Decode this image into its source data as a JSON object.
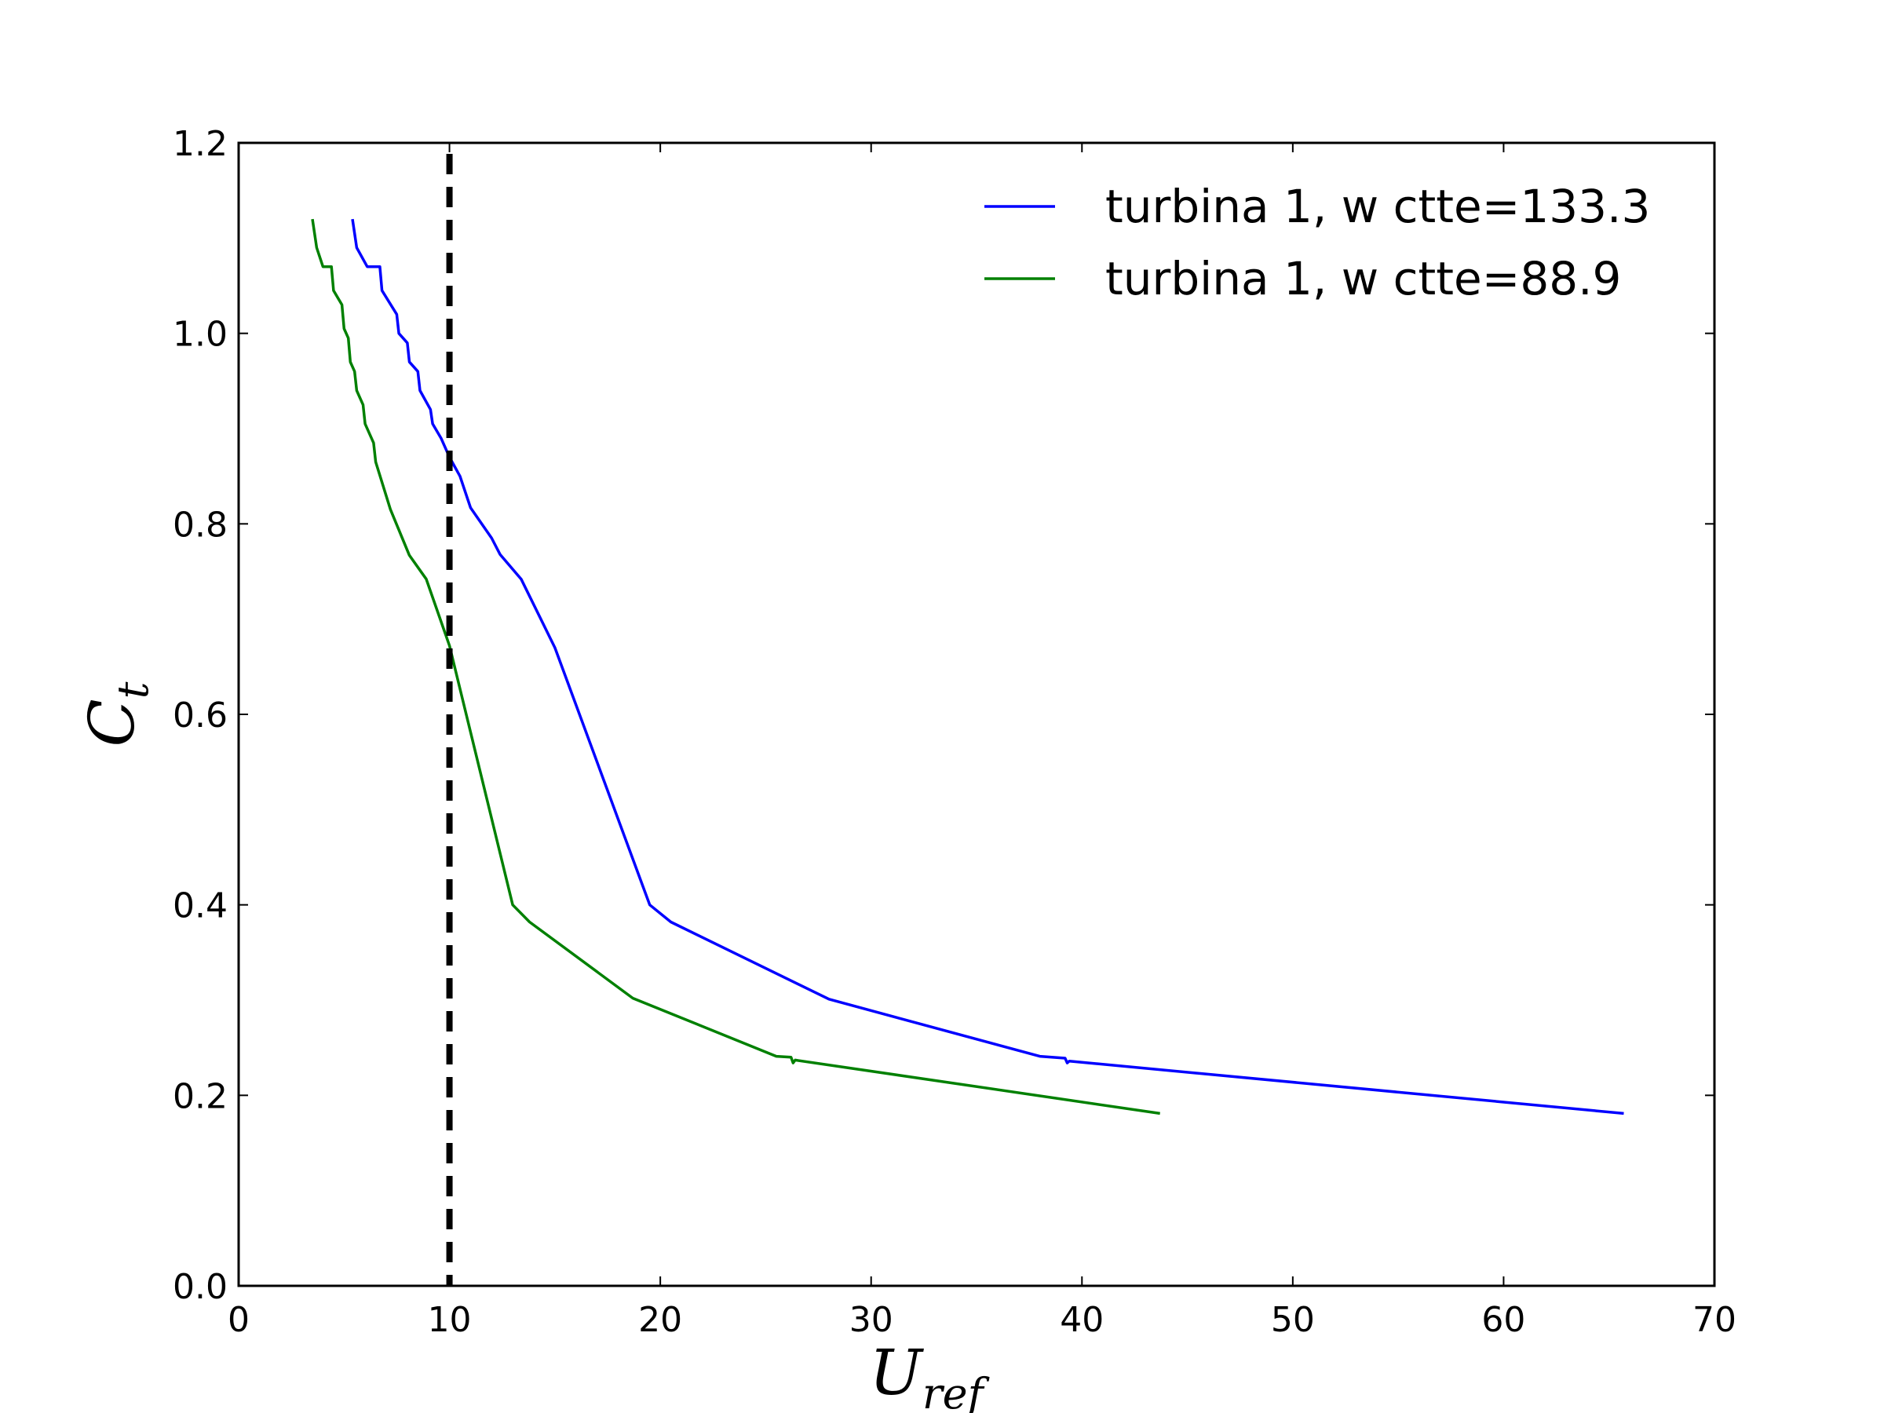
{
  "chart_data": {
    "type": "line",
    "xlabel": "U",
    "xlabel_sub": "ref",
    "ylabel": "C",
    "ylabel_sub": "t",
    "xlim": [
      0,
      70
    ],
    "ylim": [
      0.0,
      1.2
    ],
    "xticks": [
      0,
      10,
      20,
      30,
      40,
      50,
      60,
      70
    ],
    "yticks": [
      0.0,
      0.2,
      0.4,
      0.6,
      0.8,
      1.0,
      1.2
    ],
    "xtick_labels": [
      "0",
      "10",
      "20",
      "30",
      "40",
      "50",
      "60",
      "70"
    ],
    "ytick_labels": [
      "0.0",
      "0.2",
      "0.4",
      "0.6",
      "0.8",
      "1.0",
      "1.2"
    ],
    "grid": false,
    "legend_position": "top-right",
    "vline": {
      "x": 10,
      "style": "dashed",
      "color": "#000000"
    },
    "series": [
      {
        "name": "turbina 1, w ctte=133.3",
        "color": "#0000ff",
        "points": [
          [
            5.4,
            1.12
          ],
          [
            5.5,
            1.105
          ],
          [
            5.6,
            1.09
          ],
          [
            6.1,
            1.07
          ],
          [
            6.7,
            1.07
          ],
          [
            6.8,
            1.045
          ],
          [
            7.5,
            1.02
          ],
          [
            7.6,
            1.0
          ],
          [
            8.0,
            0.99
          ],
          [
            8.1,
            0.97
          ],
          [
            8.5,
            0.96
          ],
          [
            8.6,
            0.94
          ],
          [
            9.1,
            0.92
          ],
          [
            9.2,
            0.905
          ],
          [
            9.6,
            0.89
          ],
          [
            10.0,
            0.87
          ],
          [
            10.5,
            0.85
          ],
          [
            11.0,
            0.817
          ],
          [
            12.0,
            0.785
          ],
          [
            12.4,
            0.768
          ],
          [
            13.4,
            0.742
          ],
          [
            15.0,
            0.67
          ],
          [
            19.5,
            0.4
          ],
          [
            20.5,
            0.382
          ],
          [
            28.0,
            0.301
          ],
          [
            38.0,
            0.241
          ],
          [
            39.2,
            0.239
          ],
          [
            39.3,
            0.234
          ],
          [
            39.4,
            0.236
          ],
          [
            65.7,
            0.181
          ]
        ]
      },
      {
        "name": "turbina 1, w ctte=88.9",
        "color": "#008000",
        "points": [
          [
            3.5,
            1.12
          ],
          [
            3.6,
            1.105
          ],
          [
            3.7,
            1.09
          ],
          [
            4.0,
            1.07
          ],
          [
            4.4,
            1.07
          ],
          [
            4.5,
            1.045
          ],
          [
            4.9,
            1.03
          ],
          [
            5.0,
            1.005
          ],
          [
            5.2,
            0.995
          ],
          [
            5.3,
            0.97
          ],
          [
            5.5,
            0.96
          ],
          [
            5.6,
            0.94
          ],
          [
            5.9,
            0.925
          ],
          [
            6.0,
            0.905
          ],
          [
            6.4,
            0.885
          ],
          [
            6.5,
            0.865
          ],
          [
            7.2,
            0.815
          ],
          [
            8.1,
            0.767
          ],
          [
            8.9,
            0.742
          ],
          [
            10.0,
            0.672
          ],
          [
            13.0,
            0.4
          ],
          [
            13.8,
            0.382
          ],
          [
            18.7,
            0.302
          ],
          [
            25.5,
            0.241
          ],
          [
            26.2,
            0.24
          ],
          [
            26.3,
            0.234
          ],
          [
            26.4,
            0.237
          ],
          [
            43.7,
            0.181
          ]
        ]
      }
    ]
  }
}
